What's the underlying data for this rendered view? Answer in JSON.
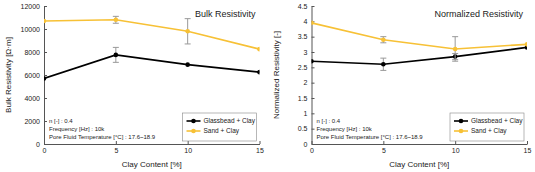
{
  "chart_data": [
    {
      "type": "line",
      "title": "Bulk Resistivity",
      "x_label": "Clay Content [%]",
      "y_label": "Bulk Resistivity [Ω·m]",
      "x": [
        0,
        5,
        10,
        15
      ],
      "xlim": [
        0,
        15
      ],
      "xticks": [
        0,
        5,
        10,
        15
      ],
      "ylim": [
        0,
        12000
      ],
      "yticks": [
        0,
        2000,
        4000,
        6000,
        8000,
        10000,
        12000
      ],
      "annotations": [
        "n [-] : 0.4",
        "Frequency [Hz] : 10k",
        "Pore Fluid Temperature [°C] : 17.6~18.9"
      ],
      "legend": "lower right",
      "series": [
        {
          "name": "Glassbead + Clay",
          "color": "#000000",
          "marker": "circle",
          "values": [
            5700,
            7750,
            6900,
            6250
          ],
          "errors": [
            null,
            650,
            null,
            null
          ]
        },
        {
          "name": "Sand + Clay",
          "color": "#f7c136",
          "marker": "circle",
          "values": [
            10700,
            10800,
            9800,
            8250
          ],
          "errors": [
            null,
            300,
            1100,
            null
          ]
        }
      ]
    },
    {
      "type": "line",
      "title": "Normalized Resistivity",
      "x_label": "Clay Content [%]",
      "y_label": "Normalized Resistivity [-]",
      "x": [
        0,
        5,
        10,
        15
      ],
      "xlim": [
        0,
        15
      ],
      "xticks": [
        0,
        5,
        10,
        15
      ],
      "ylim": [
        0,
        4.5
      ],
      "yticks": [
        0,
        0.5,
        1,
        1.5,
        2,
        2.5,
        3,
        3.5,
        4,
        4.5
      ],
      "annotations": [
        "n [-] : 0.4",
        "Frequency [Hz] : 10k",
        "Pore Fluid Temperature [°C] : 17.6~18.9"
      ],
      "legend": "lower right",
      "series": [
        {
          "name": "Glassbead + Clay",
          "color": "#000000",
          "marker": "circle",
          "values": [
            2.7,
            2.6,
            2.85,
            3.15
          ],
          "errors": [
            null,
            0.2,
            0.1,
            null
          ]
        },
        {
          "name": "Sand + Clay",
          "color": "#f7c136",
          "marker": "circle",
          "values": [
            3.95,
            3.4,
            3.1,
            3.25
          ],
          "errors": [
            null,
            0.1,
            0.4,
            null
          ]
        }
      ]
    }
  ]
}
